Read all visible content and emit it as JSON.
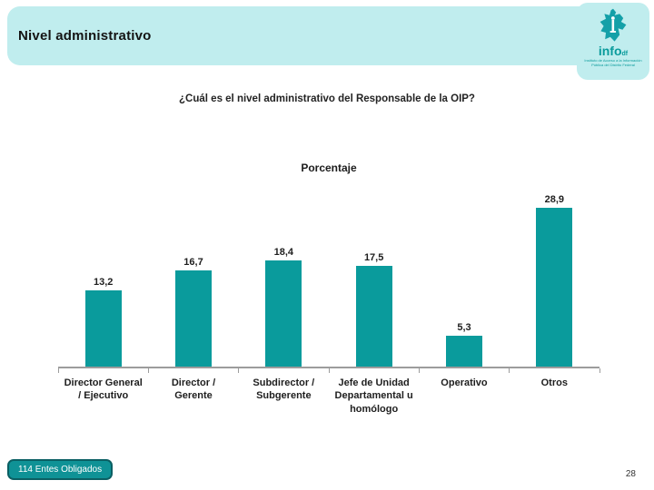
{
  "colors": {
    "header_bg": "#c0edee",
    "teal": "#0a9b9c",
    "badge_fill": "#0f9296",
    "badge_border": "#0b5f63",
    "axis": "#9c9c9c"
  },
  "header": {
    "title": "Nivel administrativo"
  },
  "logo": {
    "wordmark": "info",
    "wordmark_suffix": "df",
    "tagline": "Instituto de Acceso a la Información Pública del Distrito Federal"
  },
  "question": "¿Cuál es el nivel administrativo del Responsable de la OIP?",
  "footer": {
    "badge_label": "114 Entes Obligados",
    "page_number": "28"
  },
  "chart_data": {
    "type": "bar",
    "title": "Porcentaje",
    "categories": [
      "Director General / Ejecutivo",
      "Director / Gerente",
      "Subdirector / Subgerente",
      "Jefe de Unidad Departamental u homólogo",
      "Operativo",
      "Otros"
    ],
    "values": [
      13.2,
      16.7,
      18.4,
      17.5,
      5.3,
      28.9
    ],
    "value_labels": [
      "13,2",
      "16,7",
      "18,4",
      "17,5",
      "5,3",
      "28,9"
    ],
    "xlabel": "",
    "ylabel": "",
    "ylim": [
      0,
      30
    ],
    "grid": false,
    "legend": false,
    "decimal_separator": ",",
    "bar_color": "#0a9b9c",
    "axis_color": "#9c9c9c"
  }
}
